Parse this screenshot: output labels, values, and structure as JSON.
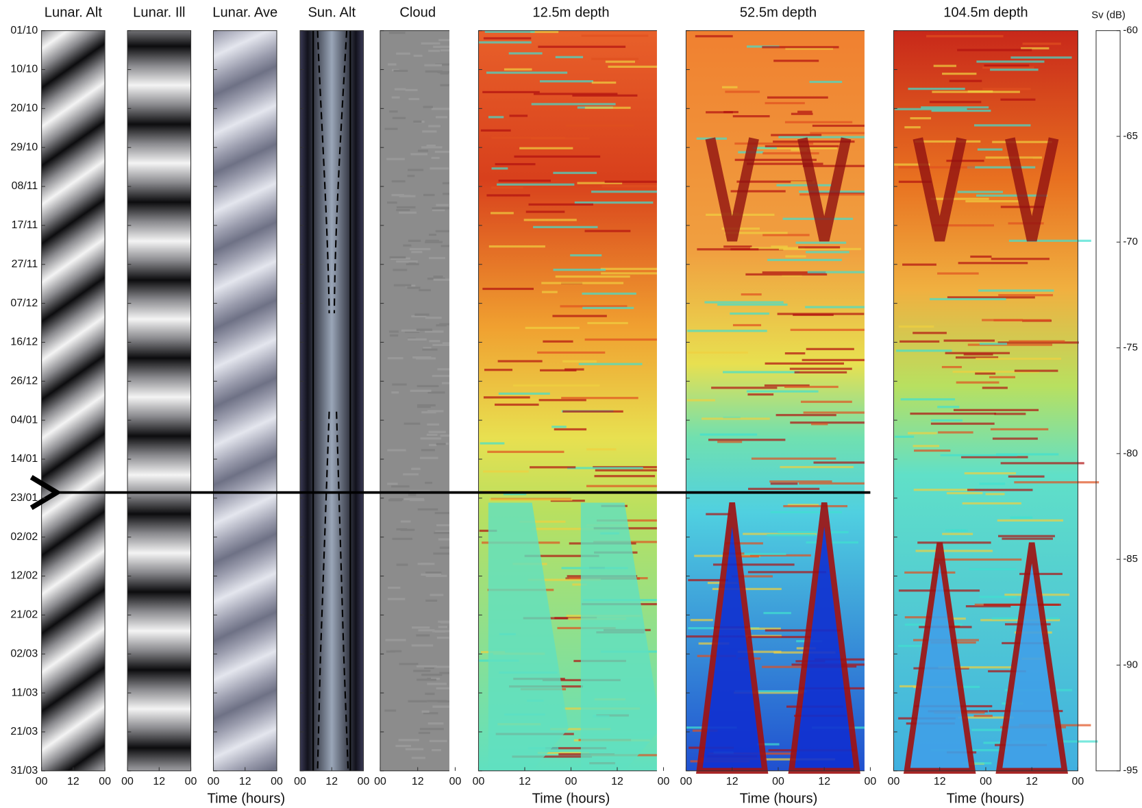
{
  "figure": {
    "panels": [
      {
        "title": "Lunar. Alt",
        "xticks": [
          "00",
          "12",
          "00"
        ]
      },
      {
        "title": "Lunar. Ill",
        "xticks": [
          "00",
          "12",
          "00"
        ]
      },
      {
        "title": "Lunar. Ave",
        "xticks": [
          "00",
          "12",
          "00"
        ]
      },
      {
        "title": "Sun. Alt",
        "xticks": [
          "00",
          "12",
          "00"
        ]
      },
      {
        "title": "Cloud",
        "xticks": [
          "00",
          "12",
          "00"
        ]
      },
      {
        "title": "12.5m depth",
        "xticks": [
          "00",
          "12",
          "00",
          "12",
          "00"
        ]
      },
      {
        "title": "52.5m depth",
        "xticks": [
          "00",
          "12",
          "00",
          "12",
          "00"
        ]
      },
      {
        "title": "104.5m depth",
        "xticks": [
          "00",
          "12",
          "00",
          "12",
          "00"
        ]
      }
    ],
    "dates": [
      "01/10",
      "10/10",
      "20/10",
      "29/10",
      "08/11",
      "17/11",
      "27/11",
      "07/12",
      "16/12",
      "26/12",
      "04/01",
      "14/01",
      "23/01",
      "02/02",
      "12/02",
      "21/02",
      "02/03",
      "11/03",
      "21/03",
      "31/03"
    ],
    "xlabel": "Time (hours)",
    "colorbar": {
      "label": "Sv (dB)",
      "lim": [
        -95,
        -60
      ],
      "ticks": [
        -60,
        -65,
        -70,
        -75,
        -80,
        -85,
        -90,
        -95
      ]
    }
  }
}
